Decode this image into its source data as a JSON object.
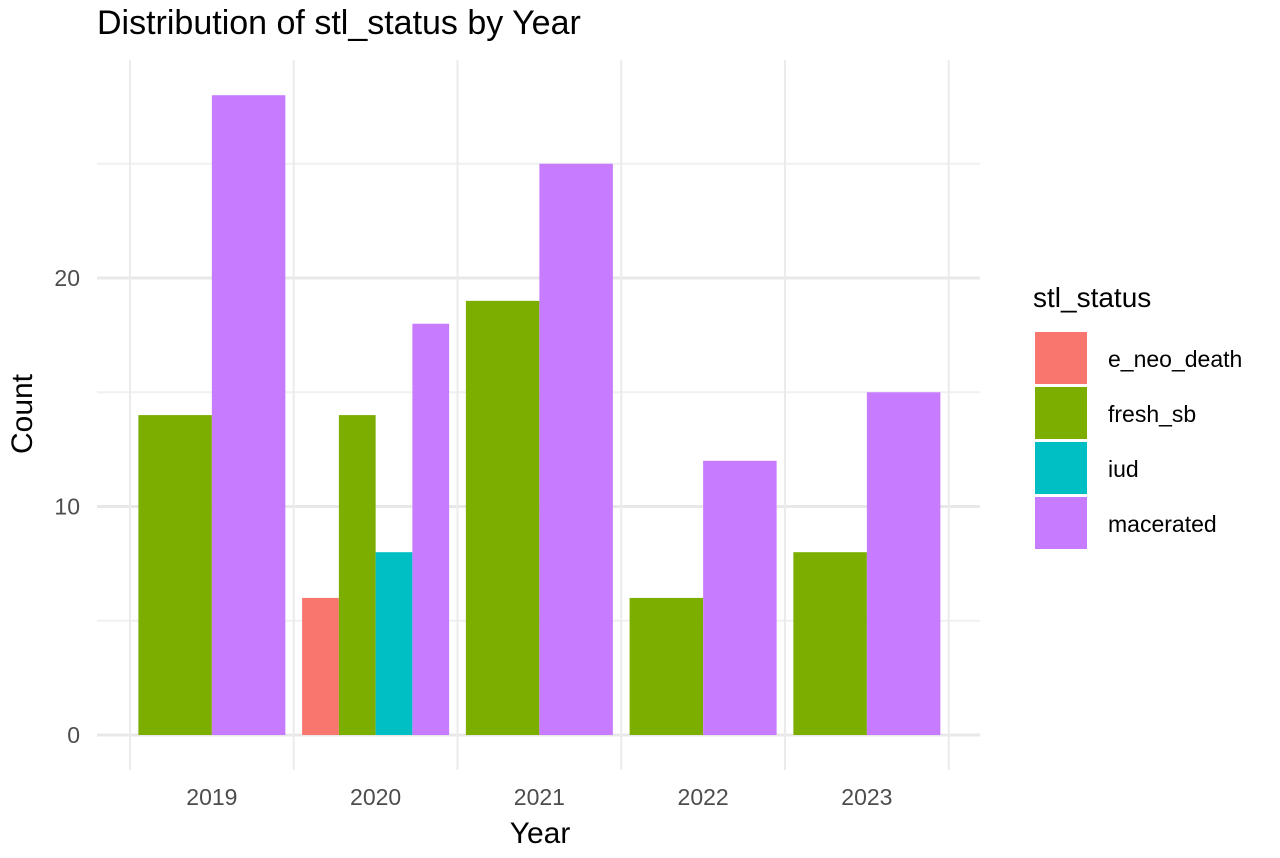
{
  "chart_data": {
    "type": "bar",
    "title": "Distribution of stl_status by Year",
    "xlabel": "Year",
    "ylabel": "Count",
    "ylim": [
      0,
      28.5
    ],
    "y_ticks": [
      0,
      10,
      20
    ],
    "categories": [
      "2019",
      "2020",
      "2021",
      "2022",
      "2023"
    ],
    "legend": {
      "title": "stl_status",
      "position": "right"
    },
    "grid": true,
    "series": [
      {
        "name": "e_neo_death",
        "color": "#F8766D",
        "values": [
          null,
          6,
          null,
          null,
          null
        ]
      },
      {
        "name": "fresh_sb",
        "color": "#7CAE00",
        "values": [
          14,
          14,
          19,
          6,
          8
        ]
      },
      {
        "name": "iud",
        "color": "#00BFC4",
        "values": [
          null,
          8,
          null,
          null,
          null
        ]
      },
      {
        "name": "macerated",
        "color": "#C77CFF",
        "values": [
          28,
          18,
          25,
          12,
          15
        ]
      }
    ]
  }
}
